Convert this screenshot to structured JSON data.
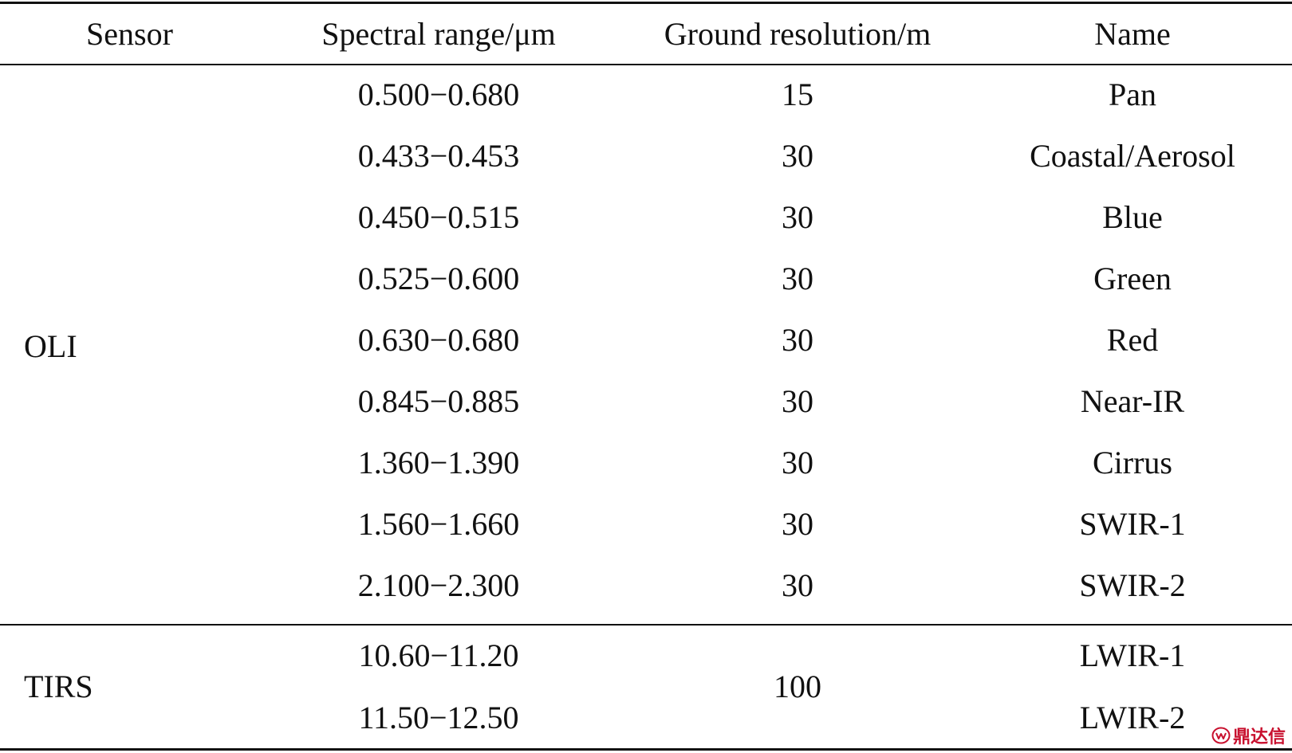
{
  "table": {
    "headers": {
      "sensor": "Sensor",
      "range": "Spectral range/μm",
      "resolution": "Ground resolution/m",
      "name": "Name"
    },
    "oli": {
      "sensor": "OLI",
      "rows": [
        {
          "range": "0.500−0.680",
          "resolution": "15",
          "name": "Pan"
        },
        {
          "range": "0.433−0.453",
          "resolution": "30",
          "name": "Coastal/Aerosol"
        },
        {
          "range": "0.450−0.515",
          "resolution": "30",
          "name": "Blue"
        },
        {
          "range": "0.525−0.600",
          "resolution": "30",
          "name": "Green"
        },
        {
          "range": "0.630−0.680",
          "resolution": "30",
          "name": "Red"
        },
        {
          "range": "0.845−0.885",
          "resolution": "30",
          "name": "Near-IR"
        },
        {
          "range": "1.360−1.390",
          "resolution": "30",
          "name": "Cirrus"
        },
        {
          "range": "1.560−1.660",
          "resolution": "30",
          "name": "SWIR-1"
        },
        {
          "range": "2.100−2.300",
          "resolution": "30",
          "name": "SWIR-2"
        }
      ]
    },
    "tirs": {
      "sensor": "TIRS",
      "resolution": "100",
      "rows": [
        {
          "range": "10.60−11.20",
          "name": "LWIR-1"
        },
        {
          "range": "11.50−12.50",
          "name": "LWIR-2"
        }
      ]
    }
  },
  "watermark": {
    "text": "鼎达信",
    "color": "#c8102e",
    "icon": "logo-icon"
  }
}
